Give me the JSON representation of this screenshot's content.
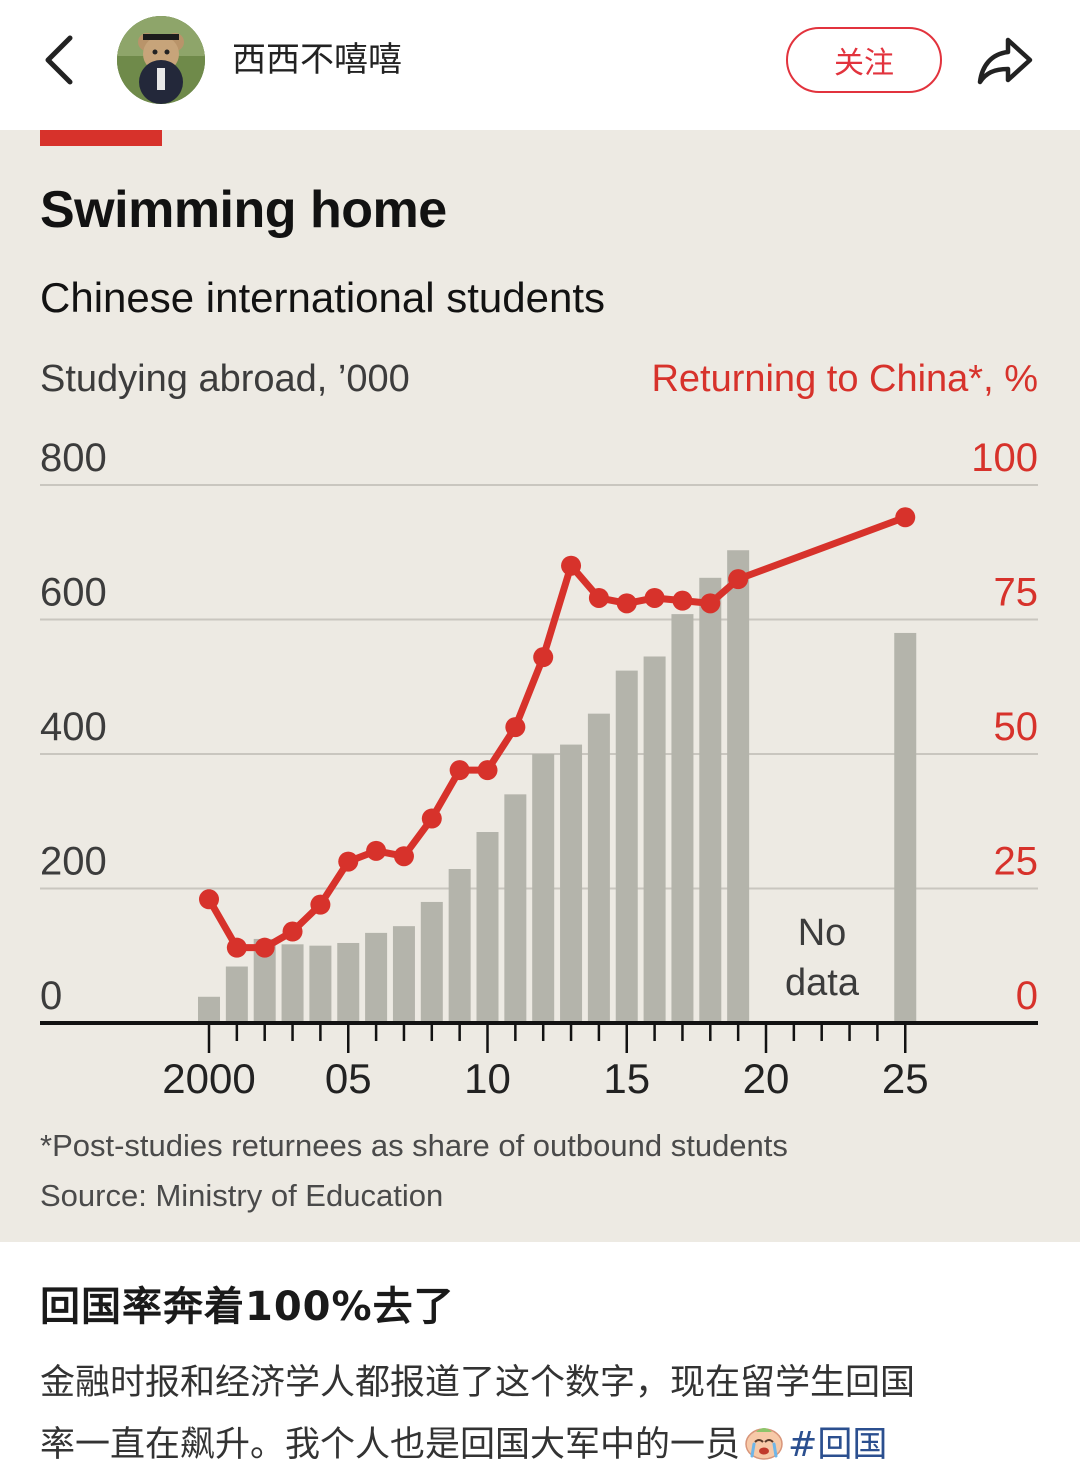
{
  "header": {
    "back_icon": "chevron-left-icon",
    "username": "西西不嘻嘻",
    "follow_label": "关注",
    "share_icon": "share-arrow-icon"
  },
  "colors": {
    "accent": "#e2333d",
    "chart_red": "#d7322b",
    "bar_grey": "#b4b4ab",
    "chart_bg": "#edeae3",
    "hashtag": "#2b4f8f"
  },
  "chart_data": {
    "type": "bar+line",
    "title": "Swimming home",
    "subtitle": "Chinese international students",
    "ylabel_left": "Studying abroad, ’000",
    "ylabel_right": "Returning to China*, %",
    "ylim_left": [
      0,
      800
    ],
    "ylim_right": [
      0,
      100
    ],
    "yticks_left": [
      "800",
      "600",
      "400",
      "200",
      "0"
    ],
    "yticks_right": [
      "100",
      "75",
      "50",
      "25",
      "0"
    ],
    "xlim": [
      1994,
      2029
    ],
    "xticks": [
      {
        "x": 2000,
        "label": "2000"
      },
      {
        "x": 2005,
        "label": "05"
      },
      {
        "x": 2010,
        "label": "10"
      },
      {
        "x": 2015,
        "label": "15"
      },
      {
        "x": 2020,
        "label": "20"
      },
      {
        "x": 2025,
        "label": "25"
      }
    ],
    "grid": true,
    "bars": {
      "name": "Studying abroad",
      "x": [
        2000,
        2001,
        2002,
        2003,
        2004,
        2005,
        2006,
        2007,
        2008,
        2009,
        2010,
        2011,
        2012,
        2013,
        2014,
        2015,
        2016,
        2017,
        2018,
        2019,
        2025
      ],
      "values": [
        39,
        84,
        125,
        117,
        115,
        119,
        134,
        144,
        180,
        229,
        284,
        340,
        400,
        414,
        460,
        524,
        545,
        608,
        662,
        703,
        580
      ]
    },
    "line": {
      "name": "Returning to China",
      "x": [
        2000,
        2001,
        2002,
        2003,
        2004,
        2005,
        2006,
        2007,
        2008,
        2009,
        2010,
        2011,
        2012,
        2013,
        2014,
        2015,
        2016,
        2017,
        2018,
        2019,
        2025
      ],
      "values": [
        23,
        14,
        14,
        17,
        22,
        30,
        32,
        31,
        38,
        47,
        47,
        55,
        68,
        85,
        79,
        78,
        79,
        78.5,
        78,
        82.5,
        94
      ]
    },
    "annotation": [
      "No",
      "data"
    ],
    "footnote": "*Post-studies returnees as share of outbound students",
    "source": "Source: Ministry of Education"
  },
  "post": {
    "title": "回国率奔着100%去了",
    "body_line1": "金融时报和经济学人都报道了这个数字，现在留学生回国",
    "body_line2": "率一直在飙升。我个人也是回国大军中的一员",
    "emoji_icon": "crying-face-emoji-icon",
    "hashtag": "#回国"
  }
}
